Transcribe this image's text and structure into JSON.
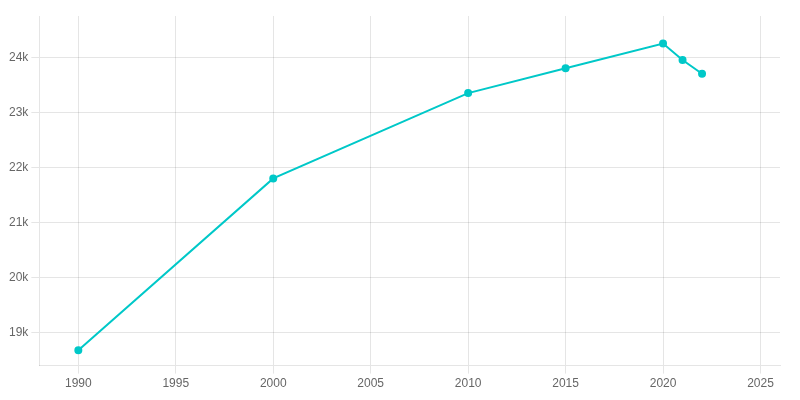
{
  "chart_data": {
    "type": "line",
    "x": [
      1990,
      2000,
      2010,
      2015,
      2020,
      2021,
      2022
    ],
    "values": [
      18680,
      21800,
      23350,
      23800,
      24250,
      23950,
      23700
    ],
    "color": "#00c8c8",
    "xlim": [
      1988,
      2026
    ],
    "ylim": [
      18400,
      24750
    ],
    "xticks": [
      1990,
      1995,
      2000,
      2005,
      2010,
      2015,
      2020,
      2025
    ],
    "yticks": [
      {
        "value": 19000,
        "label": "19k"
      },
      {
        "value": 20000,
        "label": "20k"
      },
      {
        "value": 21000,
        "label": "21k"
      },
      {
        "value": 22000,
        "label": "22k"
      },
      {
        "value": 23000,
        "label": "23k"
      },
      {
        "value": 24000,
        "label": "24k"
      }
    ],
    "grid": true
  }
}
